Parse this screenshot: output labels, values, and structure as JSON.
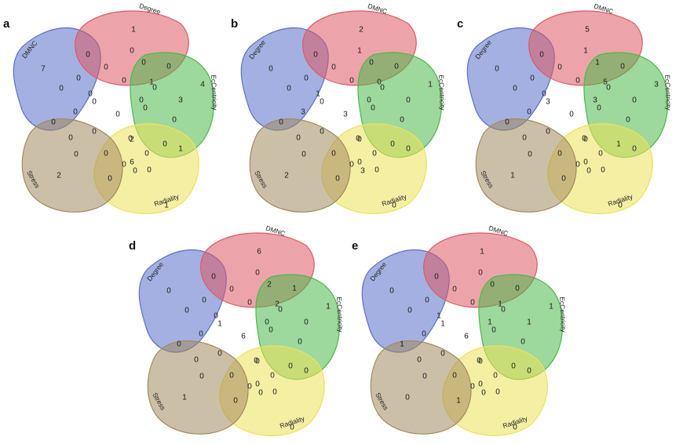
{
  "colors": {
    "blue": "#5a6fc9",
    "red": "#dc5a64",
    "green": "#4cb84a",
    "yellow": "#ece25a",
    "brown": "#a38a5e"
  },
  "panels": [
    {
      "letter": "a",
      "labels": {
        "blue": "DMNC",
        "red": "Degree",
        "green": "EcCentricity",
        "yellow": "Radiality",
        "brown": "Stress"
      },
      "values": [
        "7",
        "1",
        "4",
        "0",
        "2",
        "0",
        "0",
        "0",
        "0",
        "0",
        "0",
        "0",
        "0",
        "1",
        "0",
        "0",
        "0",
        "0",
        "0",
        "0",
        "0",
        "0",
        "0",
        "0",
        "0",
        "0",
        "3",
        "0",
        "1",
        "0",
        "0",
        "0",
        "0",
        "0",
        "2",
        "6",
        "0",
        "1"
      ]
    },
    {
      "letter": "b",
      "labels": {
        "blue": "Degree",
        "red": "DMNC",
        "green": "EcCentricity",
        "yellow": "Radiality",
        "brown": "Stress"
      },
      "values": [
        "0",
        "2",
        "1",
        "0",
        "2",
        "0",
        "0",
        "1",
        "0",
        "0",
        "0",
        "0",
        "1",
        "0",
        "0",
        "0",
        "3",
        "0",
        "3",
        "0",
        "0",
        "0",
        "0",
        "0",
        "0",
        "0",
        "0",
        "0",
        "0",
        "0",
        "3",
        "0",
        "0",
        "0",
        "0",
        "0",
        "0",
        "0"
      ]
    },
    {
      "letter": "c",
      "labels": {
        "blue": "Degree",
        "red": "DMNC",
        "green": "EcCentricity",
        "yellow": "Radiality",
        "brown": "Stress"
      },
      "values": [
        "0",
        "5",
        "3",
        "0",
        "1",
        "0",
        "0",
        "1",
        "0",
        "1",
        "0",
        "0",
        "0",
        "5",
        "0",
        "3",
        "0",
        "3",
        "0",
        "0",
        "0",
        "0",
        "0",
        "0",
        "0",
        "0",
        "0",
        "1",
        "0",
        "0",
        "0",
        "0",
        "0",
        "0",
        "0",
        "0",
        "0",
        "0"
      ]
    },
    {
      "letter": "d",
      "labels": {
        "blue": "Degree",
        "red": "DMNC",
        "green": "EcCentricity",
        "yellow": "Radiality",
        "brown": "Stress"
      },
      "values": [
        "0",
        "6",
        "1",
        "0",
        "1",
        "0",
        "0",
        "0",
        "0",
        "2",
        "1",
        "0",
        "0",
        "2",
        "0",
        "0",
        "6",
        "1",
        "0",
        "0",
        "0",
        "0",
        "0",
        "0",
        "0",
        "0",
        "0",
        "0",
        "0",
        "0",
        "0",
        "0",
        "0",
        "0",
        "0",
        "0",
        "0",
        "0"
      ]
    },
    {
      "letter": "e",
      "labels": {
        "blue": "Degree",
        "red": "DMNC",
        "green": "EcCentricity",
        "yellow": "Radiality",
        "brown": "Stress"
      },
      "values": [
        "0",
        "1",
        "1",
        "0",
        "0",
        "1",
        "0",
        "0",
        "0",
        "0",
        "0",
        "0",
        "1",
        "1",
        "0",
        "1",
        "6",
        "1",
        "0",
        "0",
        "0",
        "0",
        "0",
        "0",
        "0",
        "0",
        "1",
        "0",
        "0",
        "0",
        "0",
        "1",
        "0",
        "0",
        "0",
        "0",
        "0",
        "0"
      ]
    }
  ]
}
